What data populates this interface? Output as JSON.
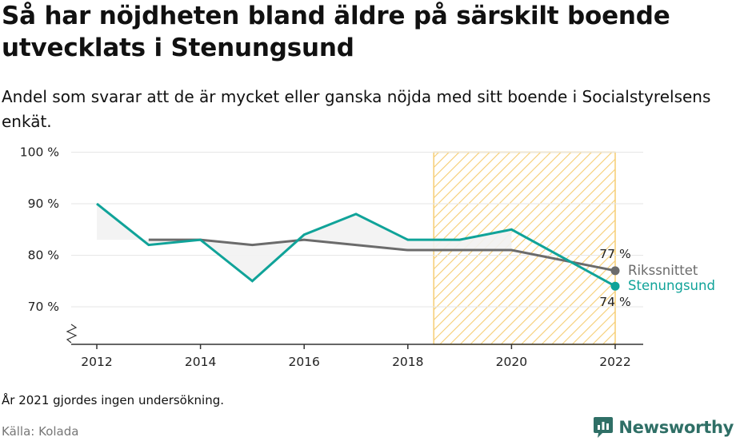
{
  "header": {
    "title": "Så har nöjdheten bland äldre på särskilt boende utvecklats i Stenungsund",
    "subtitle": "Andel som svarar att de är mycket eller ganska nöjda med sitt boende i Socialstyrelsens enkät."
  },
  "footer": {
    "note": "År 2021 gjordes ingen undersökning.",
    "source": "Källa: Kolada",
    "brand": "Newsworthy"
  },
  "colors": {
    "stenungsund": "#10a399",
    "rikssnittet": "#6b6b6b",
    "hatch": "#f6cd73",
    "brand": "#2f6f66"
  },
  "chart_data": {
    "type": "line",
    "x_ticks": [
      "2012",
      "2014",
      "2016",
      "2018",
      "2020",
      "2022"
    ],
    "y_ticks": [
      "100 %",
      "90 %",
      "80 %",
      "70 %"
    ],
    "ylim": [
      63,
      100
    ],
    "xlim": [
      2011,
      2022.5
    ],
    "grid": true,
    "shaded_period": [
      2018.5,
      2022
    ],
    "series": [
      {
        "name": "Rikssnittet",
        "color": "#6b6b6b",
        "x": [
          2013,
          2014,
          2015,
          2016,
          2017,
          2018,
          2019,
          2020,
          2022
        ],
        "values": [
          83,
          83,
          82,
          83,
          82,
          81,
          81,
          81,
          77
        ],
        "end_label": "77 %"
      },
      {
        "name": "Stenungsund",
        "color": "#10a399",
        "x": [
          2012,
          2013,
          2014,
          2015,
          2016,
          2017,
          2018,
          2019,
          2020,
          2022
        ],
        "values": [
          90,
          82,
          83,
          75,
          84,
          88,
          83,
          83,
          85,
          74
        ],
        "end_label": "74 %"
      }
    ]
  }
}
